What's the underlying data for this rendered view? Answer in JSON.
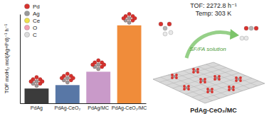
{
  "chart_data": {
    "type": "bar",
    "y_label": "TOF molH₂ mol(Ag+Pd)⁻¹ h⁻¹",
    "categories": [
      "PdAg",
      "PdAg-CeO₂",
      "PdAg/MC",
      "PdAg-CeO₂/MC"
    ],
    "values": [
      430,
      530,
      920,
      2272.8
    ],
    "colors": [
      "#3b3b3b",
      "#5877a6",
      "#c99ac9",
      "#f08c3a"
    ],
    "ylim": [
      0,
      2600
    ],
    "yticks": [],
    "tick_labels": "x",
    "grid": false,
    "annotations": [
      {
        "text": "Pd",
        "color": "#d8322e"
      },
      {
        "text": "Ag",
        "color": "#9a9a9a"
      },
      {
        "text": "Ce",
        "color": "#efe14a"
      },
      {
        "text": "O",
        "color": "#f2a0b4"
      },
      {
        "text": "C",
        "color": "#dcdcdc"
      }
    ],
    "diagram": {
      "tof_text": "TOF: 2272.8 h⁻¹",
      "temp_text": "Temp: 303 K",
      "solution_text": "SF/FA solution",
      "catalyst_text": "PdAg-CeO₂/MC"
    }
  }
}
